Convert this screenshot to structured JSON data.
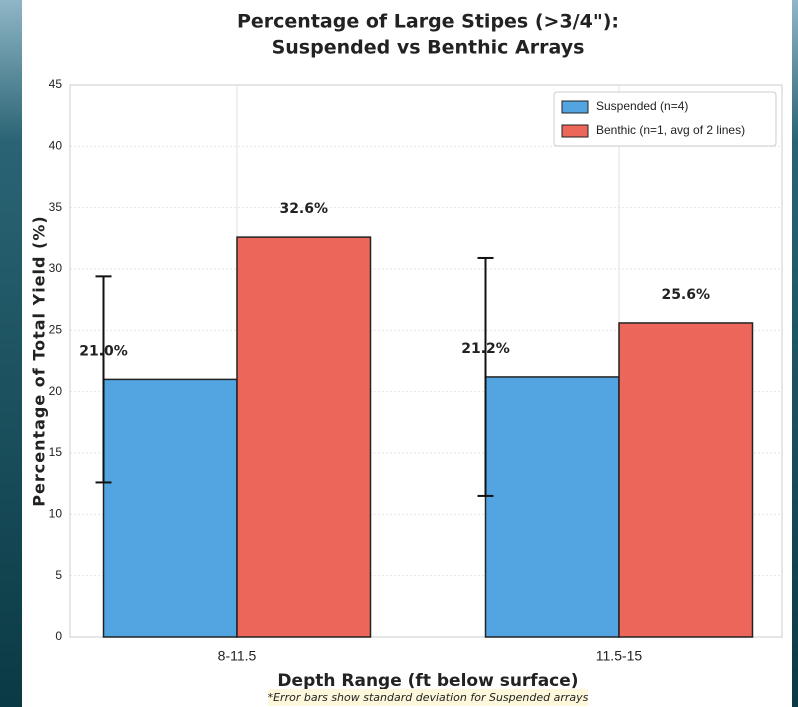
{
  "chart_data": {
    "type": "bar",
    "title": [
      "Percentage of Large Stipes (>3/4\"):",
      "Suspended vs Benthic Arrays"
    ],
    "xlabel": "Depth Range (ft below surface)",
    "ylabel": "Percentage of Total Yield (%)",
    "categories": [
      "8-11.5",
      "11.5-15"
    ],
    "series": [
      {
        "name": "Suspended (n=4)",
        "color": "#52a5e0",
        "values": [
          21.0,
          21.2
        ],
        "value_labels": [
          "21.0%",
          "21.2%"
        ],
        "errors": [
          8.4,
          9.7
        ]
      },
      {
        "name": "Benthic (n=1, avg of 2 lines)",
        "color": "#ec6759",
        "values": [
          32.6,
          25.6
        ],
        "value_labels": [
          "32.6%",
          "25.6%"
        ]
      }
    ],
    "ylim": [
      0,
      45
    ],
    "yticks": [
      0,
      5,
      10,
      15,
      20,
      25,
      30,
      35,
      40,
      45
    ],
    "grid": true,
    "legend": "upper right",
    "note": "*Error bars show standard deviation for Suspended arrays"
  }
}
